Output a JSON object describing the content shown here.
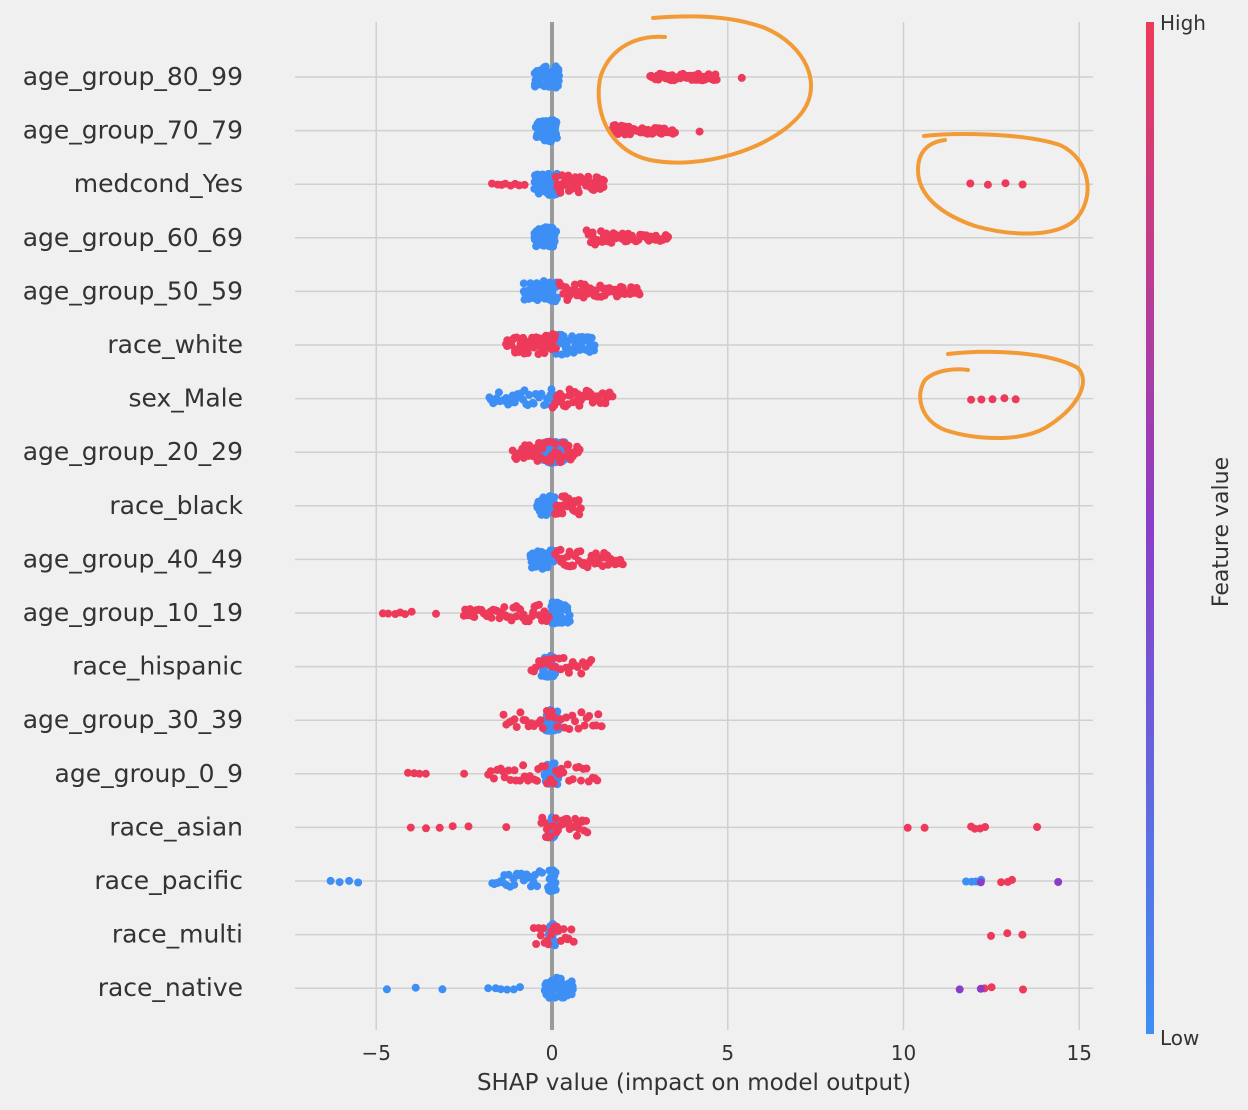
{
  "chart_data": {
    "type": "scatter",
    "subtype": "shap_beeswarm",
    "xlabel": "SHAP value (impact on model output)",
    "xlim": [
      -7.1,
      15.4
    ],
    "xticks": [
      -5,
      0,
      5,
      10,
      15
    ],
    "xtick_labels": [
      "−5",
      "0",
      "5",
      "10",
      "15"
    ],
    "grid": "vertical and horizontal",
    "colorbar": {
      "label": "Feature value",
      "high_label": "High",
      "low_label": "Low",
      "high_color": "#ee3a5a",
      "low_color": "#3d8ff5",
      "mid_color": "#8a3ec8"
    },
    "colors": {
      "background": "#f0f0f0",
      "grid": "#d0d0d0",
      "zero_line": "#9a9a9a",
      "annotation": "#f29a36"
    },
    "features": [
      {
        "name": "age_group_80_99",
        "blue": [
          [
            -0.5,
            0.2,
            70
          ]
        ],
        "red": [
          [
            2.8,
            4.7,
            55
          ],
          [
            5.4,
            5.4,
            1
          ]
        ]
      },
      {
        "name": "age_group_70_79",
        "blue": [
          [
            -0.45,
            0.15,
            60
          ]
        ],
        "red": [
          [
            1.7,
            3.5,
            55
          ],
          [
            4.2,
            4.2,
            1
          ]
        ]
      },
      {
        "name": "medcond_Yes",
        "blue": [
          [
            -0.5,
            0.15,
            60
          ]
        ],
        "red": [
          [
            -1.7,
            -0.8,
            8
          ],
          [
            0.1,
            1.5,
            50
          ],
          [
            11.9,
            13.4,
            4
          ]
        ]
      },
      {
        "name": "age_group_60_69",
        "blue": [
          [
            -0.5,
            0.1,
            55
          ]
        ],
        "red": [
          [
            1.0,
            3.3,
            55
          ]
        ]
      },
      {
        "name": "age_group_50_59",
        "blue": [
          [
            -0.8,
            0.15,
            60
          ]
        ],
        "red": [
          [
            0.2,
            2.5,
            55
          ]
        ]
      },
      {
        "name": "race_white",
        "blue": [
          [
            0.0,
            1.2,
            45
          ]
        ],
        "red": [
          [
            -1.3,
            0.1,
            55
          ]
        ]
      },
      {
        "name": "sex_Male",
        "blue": [
          [
            -1.8,
            0.1,
            35
          ]
        ],
        "red": [
          [
            0.0,
            1.7,
            40
          ],
          [
            11.9,
            13.2,
            5
          ]
        ]
      },
      {
        "name": "age_group_20_29",
        "blue": [
          [
            -0.3,
            0.4,
            70
          ]
        ],
        "red": [
          [
            -1.1,
            0.8,
            50
          ]
        ]
      },
      {
        "name": "race_black",
        "blue": [
          [
            -0.4,
            0.1,
            40
          ]
        ],
        "red": [
          [
            0.1,
            0.8,
            30
          ]
        ]
      },
      {
        "name": "age_group_40_49",
        "blue": [
          [
            -0.6,
            0.1,
            50
          ]
        ],
        "red": [
          [
            0.1,
            2.0,
            45
          ]
        ]
      },
      {
        "name": "age_group_10_19",
        "blue": [
          [
            -0.1,
            0.5,
            40
          ]
        ],
        "red": [
          [
            -4.8,
            -4.0,
            6
          ],
          [
            -3.3,
            -3.3,
            1
          ],
          [
            -2.5,
            -0.1,
            50
          ]
        ]
      },
      {
        "name": "race_hispanic",
        "blue": [
          [
            -0.3,
            0.1,
            35
          ]
        ],
        "red": [
          [
            -0.6,
            1.1,
            25
          ]
        ]
      },
      {
        "name": "age_group_30_39",
        "blue": [
          [
            -0.2,
            0.2,
            45
          ]
        ],
        "red": [
          [
            -1.4,
            1.4,
            35
          ]
        ]
      },
      {
        "name": "age_group_0_9",
        "blue": [
          [
            -0.2,
            0.2,
            45
          ]
        ],
        "red": [
          [
            -4.1,
            -3.6,
            4
          ],
          [
            -2.5,
            -2.5,
            1
          ],
          [
            -1.8,
            1.3,
            40
          ]
        ]
      },
      {
        "name": "race_asian",
        "blue": [
          [
            -0.1,
            0.1,
            30
          ]
        ],
        "red": [
          [
            -4.0,
            -2.4,
            5
          ],
          [
            -1.3,
            -1.3,
            1
          ],
          [
            -0.3,
            1.0,
            30
          ],
          [
            10.1,
            10.6,
            2
          ],
          [
            11.9,
            12.3,
            4
          ],
          [
            13.8,
            13.8,
            1
          ]
        ]
      },
      {
        "name": "race_pacific",
        "blue": [
          [
            -6.3,
            -5.5,
            4
          ],
          [
            -1.7,
            -0.3,
            25
          ],
          [
            -0.1,
            0.1,
            25
          ],
          [
            11.8,
            12.2,
            4
          ]
        ],
        "red": [
          [
            12.8,
            13.1,
            3
          ]
        ],
        "purple": [
          [
            12.2,
            12.2,
            1
          ],
          [
            14.4,
            14.4,
            1
          ]
        ]
      },
      {
        "name": "race_multi",
        "blue": [
          [
            -0.1,
            0.1,
            30
          ]
        ],
        "red": [
          [
            -0.5,
            0.6,
            20
          ],
          [
            12.5,
            13.4,
            3
          ]
        ]
      },
      {
        "name": "race_native",
        "blue": [
          [
            -4.7,
            -3.1,
            3
          ],
          [
            -1.8,
            -0.9,
            6
          ],
          [
            -0.2,
            0.6,
            45
          ]
        ],
        "red": [
          [
            12.3,
            12.5,
            2
          ],
          [
            13.4,
            13.4,
            1
          ]
        ],
        "purple": [
          [
            11.6,
            11.6,
            1
          ],
          [
            12.2,
            12.2,
            1
          ]
        ]
      }
    ]
  }
}
